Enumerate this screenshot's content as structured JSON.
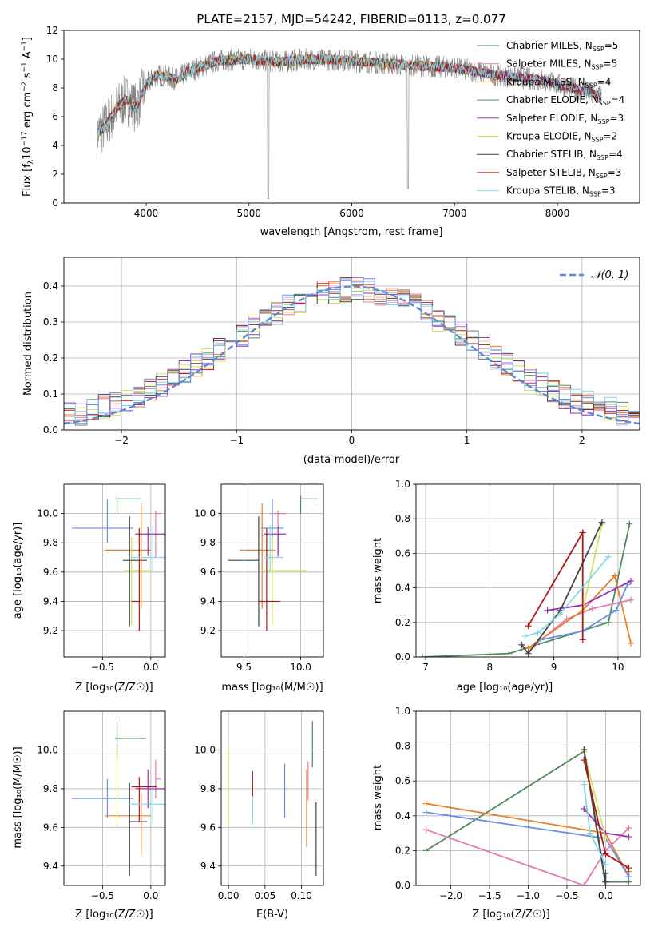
{
  "colors": {
    "Chabrier MILES": "#4e8a5e",
    "Salpeter MILES": "#e27ab4",
    "Kroupa MILES": "#e8802a",
    "Chabrier ELODIE": "#5a8f5a",
    "Salpeter ELODIE": "#9b30b8",
    "Kroupa ELODIE": "#d4e35a",
    "Chabrier STELIB": "#444444",
    "Salpeter STELIB": "#b01818",
    "Kroupa STELIB": "#86d8e6",
    "Blue": "#6a8ee6",
    "Gaussian": "#5b8ad6"
  },
  "chart_data": [
    {
      "id": "spectrum",
      "type": "line",
      "title": "PLATE=2157, MJD=54242, FIBERID=0113, z=0.077",
      "xlabel": "wavelength [Angstrom, rest frame]",
      "ylabel_main": "Flux [f",
      "ylabel_sub1": "λ",
      "ylabel_mid": "10",
      "ylabel_sup1": "−17",
      "ylabel_mid2": " erg cm",
      "ylabel_sup2": "−2",
      "ylabel_mid3": " s",
      "ylabel_sup3": "−1",
      "ylabel_mid4": " A",
      "ylabel_sup4": "−1",
      "ylabel_end": "]",
      "xlim": [
        3200,
        8800
      ],
      "ylim": [
        0,
        12
      ],
      "xticks": [
        "4000",
        "5000",
        "6000",
        "7000",
        "8000"
      ],
      "yticks": [
        "0",
        "2",
        "4",
        "6",
        "8",
        "10",
        "12"
      ],
      "legend": [
        {
          "label": "Chabrier MILES, N",
          "sub": "SSP",
          "tail": "=5",
          "color": "#4e8a5e"
        },
        {
          "label": "Salpeter MILES, N",
          "sub": "SSP",
          "tail": "=5",
          "color": "#e27ab4"
        },
        {
          "label": "Kroupa MILES, N",
          "sub": "SSP",
          "tail": "=4",
          "color": "#e8802a"
        },
        {
          "label": "Chabrier ELODIE, N",
          "sub": "SSP",
          "tail": "=4",
          "color": "#5a8f5a"
        },
        {
          "label": "Salpeter ELODIE, N",
          "sub": "SSP",
          "tail": "=3",
          "color": "#9b30b8"
        },
        {
          "label": "Kroupa ELODIE, N",
          "sub": "SSP",
          "tail": "=2",
          "color": "#d4e35a"
        },
        {
          "label": "Chabrier STELIB, N",
          "sub": "SSP",
          "tail": "=4",
          "color": "#444444"
        },
        {
          "label": "Salpeter STELIB, N",
          "sub": "SSP",
          "tail": "=3",
          "color": "#b01818"
        },
        {
          "label": "Kroupa STELIB, N",
          "sub": "SSP",
          "tail": "=3",
          "color": "#86d8e6"
        }
      ],
      "continuum": {
        "x": [
          3520,
          3600,
          3700,
          3800,
          3900,
          4000,
          4100,
          4200,
          4300,
          4400,
          4500,
          4700,
          5000,
          5300,
          5600,
          6000,
          6500,
          7000,
          7400,
          7800,
          8200,
          8500
        ],
        "y": [
          4.8,
          5.3,
          6.5,
          7.2,
          6.6,
          8.2,
          8.9,
          8.8,
          8.6,
          9.1,
          9.4,
          9.9,
          10.0,
          9.8,
          10.0,
          9.9,
          9.6,
          9.4,
          8.9,
          8.6,
          7.9,
          7.3
        ]
      }
    },
    {
      "id": "residuals",
      "type": "histogram",
      "xlabel": "(data-model)/error",
      "ylabel": "Normed distribution",
      "xlim": [
        -2.5,
        2.5
      ],
      "ylim": [
        0,
        0.48
      ],
      "xticks": [
        "−2",
        "−1",
        "0",
        "1",
        "2"
      ],
      "yticks": [
        "0.0",
        "0.1",
        "0.2",
        "0.3",
        "0.4"
      ],
      "legend_label": "𝒩(0, 1)",
      "gaussian": {
        "mean": 0,
        "sigma": 1
      },
      "bin_width": 0.1
    },
    {
      "id": "age_vs_Z",
      "type": "scatter",
      "xlabel": "Z [log₁₀(Z/Z☉)]",
      "ylabel": "age  [log₁₀(age/yr)]",
      "xlim": [
        -0.9,
        0.15
      ],
      "ylim": [
        9.02,
        10.2
      ],
      "xticks": [
        "−0.5",
        "0.0"
      ],
      "yticks": [
        "9.2",
        "9.4",
        "9.6",
        "9.8",
        "10.0"
      ],
      "points": [
        {
          "x": -0.45,
          "xerr": [
            0.37,
            0.27
          ],
          "y": 9.9,
          "yerr": [
            0.1,
            0.2
          ],
          "color": "#6a8ee6"
        },
        {
          "x": -0.35,
          "xerr": [
            0.02,
            0.25
          ],
          "y": 10.1,
          "yerr": [
            0.1,
            0.02
          ],
          "color": "#4e8a5e"
        },
        {
          "x": -0.1,
          "xerr": [
            0.38,
            0.1
          ],
          "y": 9.75,
          "yerr": [
            0.4,
            0.32
          ],
          "color": "#e8802a"
        },
        {
          "x": 0.05,
          "xerr": [
            0.0,
            0.05
          ],
          "y": 10.0,
          "yerr": [
            0.3,
            0.02
          ],
          "color": "#e27ab4"
        },
        {
          "x": -0.03,
          "xerr": [
            0.13,
            0.18
          ],
          "y": 9.86,
          "yerr": [
            0.15,
            0.05
          ],
          "color": "#9b30b8"
        },
        {
          "x": -0.2,
          "xerr": [
            0.08,
            0.2
          ],
          "y": 9.61,
          "yerr": [
            0.37,
            0.23
          ],
          "color": "#d4e35a"
        },
        {
          "x": -0.22,
          "xerr": [
            0.07,
            0.18
          ],
          "y": 9.68,
          "yerr": [
            0.45,
            0.3
          ],
          "color": "#444444"
        },
        {
          "x": -0.12,
          "xerr": [
            0.08,
            0.0
          ],
          "y": 9.4,
          "yerr": [
            0.2,
            0.5
          ],
          "color": "#b01818"
        },
        {
          "x": 0.02,
          "xerr": [
            0.25,
            0.13
          ],
          "y": 9.7,
          "yerr": [
            0.1,
            0.22
          ],
          "color": "#86d8e6"
        }
      ]
    },
    {
      "id": "age_vs_mass",
      "type": "scatter",
      "xlabel": "mass [log₁₀(M/M☉)]",
      "xlim": [
        9.3,
        10.2
      ],
      "ylim": [
        9.02,
        10.2
      ],
      "xticks": [
        "9.5",
        "10.0"
      ],
      "yticks": [
        "9.2",
        "9.4",
        "9.6",
        "9.8",
        "10.0"
      ],
      "points": [
        {
          "x": 9.75,
          "xerr": [
            0.1,
            0.1
          ],
          "y": 9.9,
          "yerr": [
            0.1,
            0.2
          ],
          "color": "#6a8ee6"
        },
        {
          "x": 10.0,
          "xerr": [
            0.0,
            0.15
          ],
          "y": 10.1,
          "yerr": [
            0.1,
            0.02
          ],
          "color": "#4e8a5e"
        },
        {
          "x": 9.66,
          "xerr": [
            0.2,
            0.12
          ],
          "y": 9.75,
          "yerr": [
            0.4,
            0.32
          ],
          "color": "#e8802a"
        },
        {
          "x": 9.8,
          "xerr": [
            0.07,
            0.07
          ],
          "y": 10.0,
          "yerr": [
            0.3,
            0.02
          ],
          "color": "#e27ab4"
        },
        {
          "x": 9.8,
          "xerr": [
            0.12,
            0.07
          ],
          "y": 9.86,
          "yerr": [
            0.15,
            0.05
          ],
          "color": "#9b30b8"
        },
        {
          "x": 9.75,
          "xerr": [
            0.1,
            0.3
          ],
          "y": 9.61,
          "yerr": [
            0.37,
            0.23
          ],
          "color": "#d4e35a"
        },
        {
          "x": 9.63,
          "xerr": [
            0.27,
            0.0
          ],
          "y": 9.68,
          "yerr": [
            0.45,
            0.3
          ],
          "color": "#444444"
        },
        {
          "x": 9.7,
          "xerr": [
            0.07,
            0.12
          ],
          "y": 9.4,
          "yerr": [
            0.2,
            0.5
          ],
          "color": "#b01818"
        },
        {
          "x": 9.73,
          "xerr": [
            0.05,
            0.12
          ],
          "y": 9.7,
          "yerr": [
            0.1,
            0.22
          ],
          "color": "#86d8e6"
        }
      ]
    },
    {
      "id": "weight_vs_age",
      "type": "line",
      "xlabel": "age  [log₁₀(age/yr)]",
      "ylabel": "mass weight",
      "xlim": [
        6.85,
        10.35
      ],
      "ylim": [
        0,
        1
      ],
      "xticks": [
        "7",
        "8",
        "9",
        "10"
      ],
      "yticks": [
        "0.0",
        "0.2",
        "0.4",
        "0.6",
        "0.8",
        "1.0"
      ],
      "series": [
        {
          "color": "#4e8a5e",
          "x": [
            6.95,
            8.3,
            9.85,
            10.18
          ],
          "y": [
            0.0,
            0.02,
            0.2,
            0.77
          ]
        },
        {
          "color": "#e27ab4",
          "x": [
            8.7,
            9.2,
            9.6,
            10.2
          ],
          "y": [
            0.07,
            0.22,
            0.28,
            0.33
          ]
        },
        {
          "color": "#e8802a",
          "x": [
            8.6,
            9.45,
            9.95,
            10.2
          ],
          "y": [
            0.05,
            0.27,
            0.47,
            0.08
          ]
        },
        {
          "color": "#6a8ee6",
          "x": [
            8.8,
            9.45,
            9.97,
            10.15
          ],
          "y": [
            0.1,
            0.15,
            0.27,
            0.42
          ]
        },
        {
          "color": "#9b30b8",
          "x": [
            8.9,
            9.45,
            10.2
          ],
          "y": [
            0.27,
            0.3,
            0.44
          ]
        },
        {
          "color": "#d4e35a",
          "x": [
            9.45,
            9.75
          ],
          "y": [
            0.27,
            0.77
          ]
        },
        {
          "color": "#444444",
          "x": [
            8.5,
            8.6,
            9.1,
            9.75
          ],
          "y": [
            0.07,
            0.02,
            0.27,
            0.78
          ]
        },
        {
          "color": "#b01818",
          "x": [
            8.6,
            9.45,
            9.45
          ],
          "y": [
            0.18,
            0.72,
            0.1
          ]
        },
        {
          "color": "#86d8e6",
          "x": [
            8.55,
            8.75,
            9.1,
            9.85
          ],
          "y": [
            0.12,
            0.14,
            0.25,
            0.58
          ]
        }
      ]
    },
    {
      "id": "mass_vs_Z",
      "type": "scatter",
      "xlabel": "Z [log₁₀(Z/Z☉)]",
      "ylabel": "mass [log₁₀(M/M☉)]",
      "xlim": [
        -0.9,
        0.15
      ],
      "ylim": [
        9.3,
        10.2
      ],
      "xticks": [
        "−0.5",
        "0.0"
      ],
      "yticks": [
        "9.4",
        "9.6",
        "9.8",
        "10.0"
      ],
      "points": [
        {
          "x": -0.45,
          "xerr": [
            0.37,
            0.27
          ],
          "y": 9.75,
          "yerr": [
            0.1,
            0.1
          ],
          "color": "#6a8ee6"
        },
        {
          "x": -0.35,
          "xerr": [
            0.02,
            0.3
          ],
          "y": 10.06,
          "yerr": [
            0.1,
            0.09
          ],
          "color": "#4e8a5e"
        },
        {
          "x": -0.1,
          "xerr": [
            0.38,
            0.1
          ],
          "y": 9.66,
          "yerr": [
            0.2,
            0.12
          ],
          "color": "#e8802a"
        },
        {
          "x": 0.05,
          "xerr": [
            0.0,
            0.05
          ],
          "y": 9.85,
          "yerr": [
            0.1,
            0.1
          ],
          "color": "#e27ab4"
        },
        {
          "x": -0.03,
          "xerr": [
            0.13,
            0.18
          ],
          "y": 9.8,
          "yerr": [
            0.1,
            0.1
          ],
          "color": "#9b30b8"
        },
        {
          "x": -0.35,
          "xerr": [
            0.0,
            0.0
          ],
          "y": 9.8,
          "yerr": [
            0.2,
            0.22
          ],
          "color": "#d4e35a"
        },
        {
          "x": -0.22,
          "xerr": [
            0.0,
            0.18
          ],
          "y": 9.63,
          "yerr": [
            0.28,
            0.2
          ],
          "color": "#444444"
        },
        {
          "x": -0.12,
          "xerr": [
            0.08,
            0.18
          ],
          "y": 9.81,
          "yerr": [
            0.18,
            0.05
          ],
          "color": "#b01818"
        },
        {
          "x": 0.02,
          "xerr": [
            0.25,
            0.13
          ],
          "y": 9.72,
          "yerr": [
            0.1,
            0.1
          ],
          "color": "#86d8e6"
        }
      ]
    },
    {
      "id": "mass_vs_ebv",
      "type": "scatter",
      "xlabel": "E(B-V)",
      "xlim": [
        -0.01,
        0.13
      ],
      "ylim": [
        9.3,
        10.2
      ],
      "xticks": [
        "0.00",
        "0.05",
        "0.10"
      ],
      "yticks": [
        "9.4",
        "9.6",
        "9.8",
        "10.0"
      ],
      "points": [
        {
          "x": 0.0,
          "y": 9.8,
          "yerr": [
            0.2,
            0.22
          ],
          "color": "#d4e35a"
        },
        {
          "x": 0.0,
          "y": 9.6,
          "yerr": [
            0.0,
            0.0
          ],
          "color": "#9b30b8"
        },
        {
          "x": 0.033,
          "y": 9.72,
          "yerr": [
            0.1,
            0.1
          ],
          "color": "#86d8e6"
        },
        {
          "x": 0.033,
          "y": 9.81,
          "yerr": [
            0.05,
            0.08
          ],
          "color": "#b01818"
        },
        {
          "x": 0.077,
          "y": 9.8,
          "yerr": [
            0.15,
            0.13
          ],
          "color": "#6a8ee6"
        },
        {
          "x": 0.107,
          "y": 9.7,
          "yerr": [
            0.2,
            0.2
          ],
          "color": "#e8802a"
        },
        {
          "x": 0.109,
          "y": 9.84,
          "yerr": [
            0.1,
            0.1
          ],
          "color": "#e27ab4"
        },
        {
          "x": 0.115,
          "y": 10.06,
          "yerr": [
            0.15,
            0.09
          ],
          "color": "#4e8a5e"
        },
        {
          "x": 0.12,
          "y": 9.55,
          "yerr": [
            0.2,
            0.18
          ],
          "color": "#444444"
        }
      ]
    },
    {
      "id": "weight_vs_Z",
      "type": "line",
      "xlabel": "Z [log₁₀(Z/Z☉)]",
      "ylabel": "mass weight",
      "xlim": [
        -2.45,
        0.45
      ],
      "ylim": [
        0,
        1
      ],
      "xticks": [
        "−2.0",
        "−1.5",
        "−1.0",
        "−0.5",
        "0.0"
      ],
      "yticks": [
        "0.0",
        "0.2",
        "0.4",
        "0.6",
        "0.8",
        "1.0"
      ],
      "series": [
        {
          "color": "#4e8a5e",
          "x": [
            -2.32,
            -0.28,
            0.0,
            0.0,
            0.3
          ],
          "y": [
            0.2,
            0.77,
            0.0,
            0.02,
            0.02
          ]
        },
        {
          "color": "#e8802a",
          "x": [
            -2.32,
            0.0,
            0.3,
            0.3
          ],
          "y": [
            0.47,
            0.3,
            0.05,
            0.08
          ]
        },
        {
          "color": "#6a8ee6",
          "x": [
            -2.32,
            0.0,
            0.3
          ],
          "y": [
            0.42,
            0.27,
            0.05
          ]
        },
        {
          "color": "#e27ab4",
          "x": [
            -2.32,
            -0.28,
            0.0,
            0.3
          ],
          "y": [
            0.32,
            0.0,
            0.2,
            0.33
          ]
        },
        {
          "color": "#9b30b8",
          "x": [
            -0.28,
            0.0,
            0.3
          ],
          "y": [
            0.44,
            0.3,
            0.28
          ]
        },
        {
          "color": "#d4e35a",
          "x": [
            -0.28,
            0.0
          ],
          "y": [
            0.77,
            0.27
          ]
        },
        {
          "color": "#444444",
          "x": [
            -0.28,
            0.0,
            0.0
          ],
          "y": [
            0.78,
            0.02,
            0.07
          ]
        },
        {
          "color": "#b01818",
          "x": [
            -0.28,
            0.0,
            0.3
          ],
          "y": [
            0.72,
            0.18,
            0.1
          ]
        },
        {
          "color": "#86d8e6",
          "x": [
            -0.28,
            -0.2,
            0.0
          ],
          "y": [
            0.58,
            0.3,
            0.12
          ]
        }
      ]
    }
  ]
}
